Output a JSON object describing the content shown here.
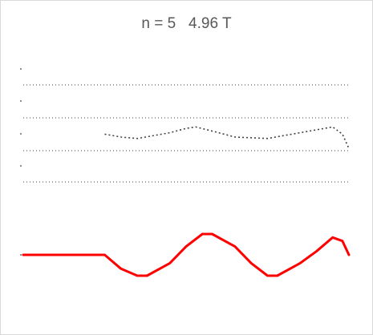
{
  "chart_data": {
    "type": "line",
    "title": "n = 5   4.96 T",
    "xlabel": "",
    "ylabel": "",
    "grid": true,
    "grid_rows": 4,
    "series": [
      {
        "role": "main",
        "color": "#ff0000",
        "style": "solid",
        "points": [
          [
            0,
            0
          ],
          [
            0.25,
            0
          ],
          [
            0.3,
            -0.2
          ],
          [
            0.35,
            -0.3
          ],
          [
            0.38,
            -0.3
          ],
          [
            0.45,
            -0.12
          ],
          [
            0.5,
            0.12
          ],
          [
            0.55,
            0.3
          ],
          [
            0.58,
            0.3
          ],
          [
            0.65,
            0.12
          ],
          [
            0.7,
            -0.12
          ],
          [
            0.75,
            -0.3
          ],
          [
            0.78,
            -0.3
          ],
          [
            0.85,
            -0.12
          ],
          [
            0.9,
            0.05
          ],
          [
            0.95,
            0.25
          ],
          [
            0.98,
            0.2
          ],
          [
            1.0,
            0.0
          ]
        ]
      },
      {
        "role": "upper",
        "color": "#404040",
        "style": "dashed",
        "points": [
          [
            0.25,
            0.6
          ],
          [
            0.3,
            0.5
          ],
          [
            0.35,
            0.45
          ],
          [
            0.45,
            0.65
          ],
          [
            0.5,
            0.8
          ],
          [
            0.53,
            0.85
          ],
          [
            0.6,
            0.65
          ],
          [
            0.65,
            0.5
          ],
          [
            0.75,
            0.45
          ],
          [
            0.85,
            0.65
          ],
          [
            0.95,
            0.85
          ],
          [
            0.98,
            0.6
          ],
          [
            1.0,
            0.1
          ]
        ]
      }
    ]
  }
}
